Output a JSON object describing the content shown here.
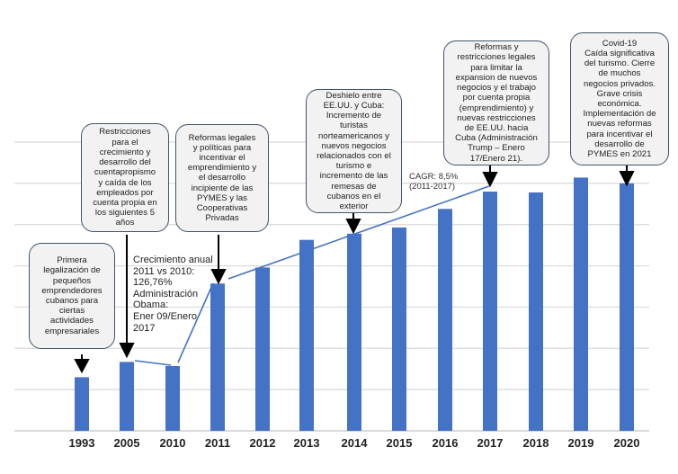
{
  "chart_data": {
    "type": "bar",
    "title": "",
    "xlabel": "",
    "ylabel": "",
    "categories": [
      "1993",
      "2005",
      "2010",
      "2011",
      "2012",
      "2013",
      "2014",
      "2015",
      "2016",
      "2017",
      "2018",
      "2019",
      "2020"
    ],
    "values": [
      1.3,
      1.67,
      1.57,
      3.57,
      3.96,
      4.63,
      4.78,
      4.93,
      5.38,
      5.8,
      5.78,
      6.14,
      6.0
    ],
    "ylim": [
      0,
      7
    ],
    "y_axis_labels_shown": false,
    "grid": true,
    "bar_color": "#4472c4",
    "trend_line_color": "#4472c4",
    "annotations": [
      {
        "category": "1993",
        "text": "Primera\nlegalización de\npequeños\nemprendedores\ncubanos para\nciertas\nactividades\nempresariales"
      },
      {
        "category": "2005",
        "text": "Restricciones\npara el\ncrecimiento y\ndesarrollo del\ncuentapropismo\ny caída de los\nempleados por\ncuenta propia en\nlos siguientes 5\naños"
      },
      {
        "category": "2011",
        "text": "Reformas legales\ny políticas para\nincentivar el\nemprendimiento y\nel desarrollo\nincipiente de las\nPYMES y las\nCooperativas\nPrivadas"
      },
      {
        "category": "2014",
        "text": "Deshielo entre\nEE.UU. y Cuba:\nIncremento de\nturistas\nnorteamericanos  y\nnuevos negocios\nrelacionados con el\nturismo e\nincremento de las\nremesas de\ncubanos en el\nexterior"
      },
      {
        "category": "2017",
        "text": "Reformas y\nrestricciones legales\npara limitar la\nexpansion de nuevos\nnegocios y el trabajo\npor cuenta propia\n(emprendimiento) y\nnuevas restricciones\nde EE.UU. hacia\nCuba (Administración\nTrump – Enero\n17/Enero 21)."
      },
      {
        "category": "2020",
        "text": "Covid-19\nCaída significativa\ndel turismo. Cierre\nde muchos\nnegocios privados.\nGrave crisis\neconómica.\nImplementación de\nnuevas reformas\npara incentivar el\ndesarrollo de\nPYMES en 2021"
      }
    ],
    "growth_note": "Crecimiento anual\n2011 vs 2010:\n126,76%\nAdministración\nObama:\nEner 09/Enero\n2017",
    "cagr_note": "CAGR: 8,5%\n(2011-2017)"
  }
}
